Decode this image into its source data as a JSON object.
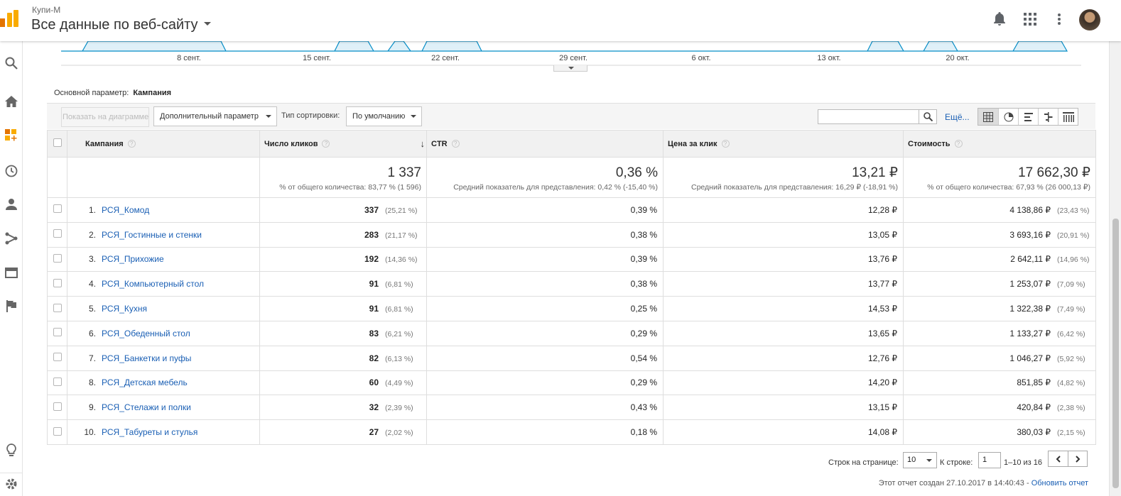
{
  "header": {
    "account": "Купи-М",
    "property": "Все данные по веб-сайту"
  },
  "graph": {
    "x_labels": [
      "8 сент.",
      "15 сент.",
      "22 сент.",
      "29 сент.",
      "6 окт.",
      "13 окт.",
      "20 окт."
    ]
  },
  "primary_dimension": {
    "label": "Основной параметр:",
    "value": "Кампания"
  },
  "toolbar": {
    "plot_button": "Показать на диаграмме",
    "secondary_dim": "Дополнительный параметр",
    "sort_label": "Тип сортировки:",
    "sort_value": "По умолчанию",
    "more": "Ещё..."
  },
  "table": {
    "headers": {
      "campaign": "Кампания",
      "clicks": "Число кликов",
      "ctr": "CTR",
      "cpc": "Цена за клик",
      "cost": "Стоимость"
    },
    "totals": {
      "clicks": {
        "value": "1 337",
        "sub": "% от общего количества: 83,77 % (1 596)"
      },
      "ctr": {
        "value": "0,36 %",
        "sub": "Средний показатель для представления: 0,42 % (-15,40 %)"
      },
      "cpc": {
        "value": "13,21 ₽",
        "sub": "Средний показатель для представления: 16,29 ₽ (-18,91 %)"
      },
      "cost": {
        "value": "17 662,30 ₽",
        "sub": "% от общего количества: 67,93 % (26 000,13 ₽)"
      }
    },
    "rows": [
      {
        "idx": "1.",
        "name": "РСЯ_Комод",
        "clicks": "337",
        "clicks_pct": "(25,21 %)",
        "ctr": "0,39 %",
        "cpc": "12,28 ₽",
        "cost": "4 138,86 ₽",
        "cost_pct": "(23,43 %)"
      },
      {
        "idx": "2.",
        "name": "РСЯ_Гостинные и стенки",
        "clicks": "283",
        "clicks_pct": "(21,17 %)",
        "ctr": "0,38 %",
        "cpc": "13,05 ₽",
        "cost": "3 693,16 ₽",
        "cost_pct": "(20,91 %)"
      },
      {
        "idx": "3.",
        "name": "РСЯ_Прихожие",
        "clicks": "192",
        "clicks_pct": "(14,36 %)",
        "ctr": "0,39 %",
        "cpc": "13,76 ₽",
        "cost": "2 642,11 ₽",
        "cost_pct": "(14,96 %)"
      },
      {
        "idx": "4.",
        "name": "РСЯ_Компьютерный стол",
        "clicks": "91",
        "clicks_pct": "(6,81 %)",
        "ctr": "0,38 %",
        "cpc": "13,77 ₽",
        "cost": "1 253,07 ₽",
        "cost_pct": "(7,09 %)"
      },
      {
        "idx": "5.",
        "name": "РСЯ_Кухня",
        "clicks": "91",
        "clicks_pct": "(6,81 %)",
        "ctr": "0,25 %",
        "cpc": "14,53 ₽",
        "cost": "1 322,38 ₽",
        "cost_pct": "(7,49 %)"
      },
      {
        "idx": "6.",
        "name": "РСЯ_Обеденный стол",
        "clicks": "83",
        "clicks_pct": "(6,21 %)",
        "ctr": "0,29 %",
        "cpc": "13,65 ₽",
        "cost": "1 133,27 ₽",
        "cost_pct": "(6,42 %)"
      },
      {
        "idx": "7.",
        "name": "РСЯ_Банкетки и пуфы",
        "clicks": "82",
        "clicks_pct": "(6,13 %)",
        "ctr": "0,54 %",
        "cpc": "12,76 ₽",
        "cost": "1 046,27 ₽",
        "cost_pct": "(5,92 %)"
      },
      {
        "idx": "8.",
        "name": "РСЯ_Детская мебель",
        "clicks": "60",
        "clicks_pct": "(4,49 %)",
        "ctr": "0,29 %",
        "cpc": "14,20 ₽",
        "cost": "851,85 ₽",
        "cost_pct": "(4,82 %)"
      },
      {
        "idx": "9.",
        "name": "РСЯ_Стелажи и полки",
        "clicks": "32",
        "clicks_pct": "(2,39 %)",
        "ctr": "0,43 %",
        "cpc": "13,15 ₽",
        "cost": "420,84 ₽",
        "cost_pct": "(2,38 %)"
      },
      {
        "idx": "10.",
        "name": "РСЯ_Табуреты и стулья",
        "clicks": "27",
        "clicks_pct": "(2,02 %)",
        "ctr": "0,18 %",
        "cpc": "14,08 ₽",
        "cost": "380,03 ₽",
        "cost_pct": "(2,15 %)"
      }
    ]
  },
  "footer": {
    "rows_label": "Строк на странице:",
    "rows_value": "10",
    "goto_label": "К строке:",
    "goto_value": "1",
    "range": "1–10 из 16",
    "created": "Этот отчет создан 27.10.2017 в 14:40:43 -",
    "refresh": "Обновить отчет"
  },
  "icons": {
    "header": [
      "bell-icon",
      "apps-grid-icon",
      "more-vert-icon"
    ],
    "sidebar": [
      "search-icon",
      "home-icon",
      "customization-icon",
      "realtime-clock-icon",
      "audience-person-icon",
      "acquisition-icon",
      "behavior-icon",
      "conversions-flag-icon",
      "discover-bulb-icon",
      "settings-gear-icon"
    ]
  },
  "colors": {
    "link": "#1a5fb4",
    "logo_orange": "#f9ab00",
    "logo_dark": "#e37400",
    "graph_fill": "#dff0f8",
    "graph_line": "#058dc7"
  }
}
